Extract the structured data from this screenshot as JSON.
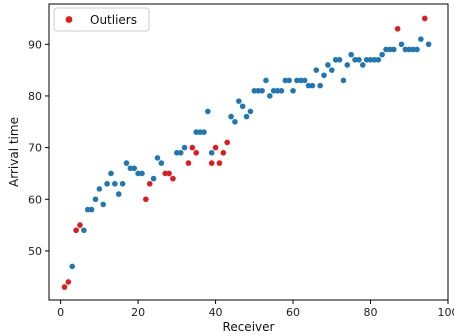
{
  "chart_data": {
    "type": "scatter",
    "title": "",
    "xlabel": "Receiver",
    "ylabel": "Arrival time",
    "xlim": [
      -3,
      100
    ],
    "ylim": [
      40.5,
      97.8
    ],
    "xticks": [
      0,
      20,
      40,
      60,
      80,
      100
    ],
    "yticks": [
      50,
      60,
      70,
      80,
      90
    ],
    "grid": false,
    "legend_position": "top-left",
    "series": [
      {
        "key": "normal",
        "color": "#1f77b4",
        "points": [
          [
            3,
            47
          ],
          [
            6,
            54
          ],
          [
            7,
            58
          ],
          [
            8,
            58
          ],
          [
            9,
            60
          ],
          [
            10,
            62
          ],
          [
            11,
            59
          ],
          [
            12,
            63
          ],
          [
            13,
            65
          ],
          [
            14,
            63
          ],
          [
            15,
            61
          ],
          [
            16,
            63
          ],
          [
            17,
            67
          ],
          [
            18,
            66
          ],
          [
            19,
            66
          ],
          [
            20,
            65
          ],
          [
            21,
            65
          ],
          [
            24,
            64
          ],
          [
            25,
            68
          ],
          [
            26,
            67
          ],
          [
            30,
            69
          ],
          [
            31,
            69
          ],
          [
            32,
            70
          ],
          [
            35,
            73
          ],
          [
            36,
            73
          ],
          [
            37,
            73
          ],
          [
            38,
            77
          ],
          [
            39,
            69
          ],
          [
            44,
            76
          ],
          [
            45,
            75
          ],
          [
            46,
            79
          ],
          [
            47,
            78
          ],
          [
            48,
            76
          ],
          [
            49,
            77
          ],
          [
            50,
            81
          ],
          [
            51,
            81
          ],
          [
            52,
            81
          ],
          [
            53,
            83
          ],
          [
            54,
            80
          ],
          [
            55,
            81
          ],
          [
            56,
            81
          ],
          [
            57,
            81
          ],
          [
            58,
            83
          ],
          [
            59,
            83
          ],
          [
            60,
            81
          ],
          [
            61,
            83
          ],
          [
            62,
            83
          ],
          [
            63,
            83
          ],
          [
            64,
            82
          ],
          [
            65,
            82
          ],
          [
            66,
            85
          ],
          [
            67,
            82
          ],
          [
            68,
            84
          ],
          [
            69,
            86
          ],
          [
            70,
            85
          ],
          [
            71,
            87
          ],
          [
            72,
            87
          ],
          [
            73,
            83
          ],
          [
            74,
            86
          ],
          [
            75,
            88
          ],
          [
            76,
            87
          ],
          [
            77,
            87
          ],
          [
            78,
            86
          ],
          [
            79,
            87
          ],
          [
            80,
            87
          ],
          [
            81,
            87
          ],
          [
            82,
            87
          ],
          [
            83,
            88
          ],
          [
            84,
            89
          ],
          [
            85,
            89
          ],
          [
            86,
            89
          ],
          [
            88,
            90
          ],
          [
            89,
            89
          ],
          [
            90,
            89
          ],
          [
            91,
            89
          ],
          [
            92,
            89
          ],
          [
            93,
            91
          ],
          [
            95,
            90
          ]
        ]
      },
      {
        "key": "outliers",
        "name": "Outliers",
        "color": "#e31a1c",
        "points": [
          [
            1,
            43
          ],
          [
            2,
            44
          ],
          [
            4,
            54
          ],
          [
            5,
            55
          ],
          [
            22,
            60
          ],
          [
            23,
            63
          ],
          [
            27,
            65
          ],
          [
            28,
            65
          ],
          [
            29,
            64
          ],
          [
            33,
            67
          ],
          [
            34,
            70
          ],
          [
            35,
            69
          ],
          [
            39,
            67
          ],
          [
            40,
            70
          ],
          [
            41,
            67
          ],
          [
            42,
            69
          ],
          [
            43,
            71
          ],
          [
            87,
            93
          ],
          [
            94,
            95
          ]
        ]
      }
    ]
  }
}
